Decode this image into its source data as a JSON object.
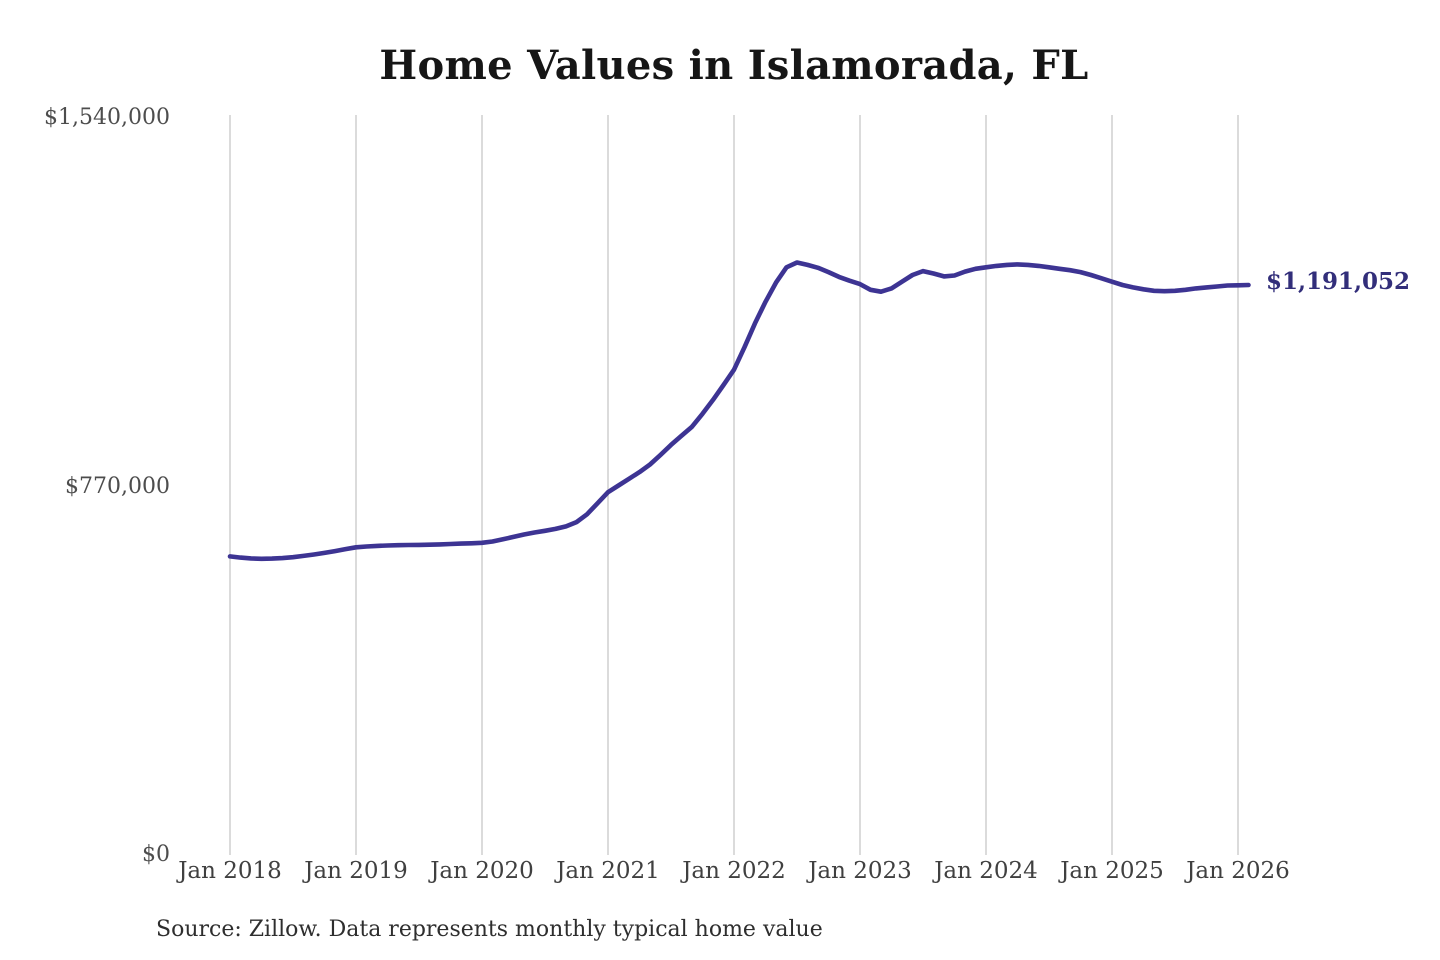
{
  "chart": {
    "title": "Home Values in Islamorada, FL",
    "end_label": "$1,191,052",
    "source_note": "Source: Zillow. Data represents monthly typical home value"
  },
  "chart_data": {
    "type": "line",
    "title": "Home Values in Islamorada, FL",
    "series_name": "Monthly typical home value",
    "unit": "USD",
    "x": [
      "2018-01",
      "2018-02",
      "2018-03",
      "2018-04",
      "2018-05",
      "2018-06",
      "2018-07",
      "2018-08",
      "2018-09",
      "2018-10",
      "2018-11",
      "2018-12",
      "2019-01",
      "2019-02",
      "2019-03",
      "2019-04",
      "2019-05",
      "2019-06",
      "2019-07",
      "2019-08",
      "2019-09",
      "2019-10",
      "2019-11",
      "2019-12",
      "2020-01",
      "2020-02",
      "2020-03",
      "2020-04",
      "2020-05",
      "2020-06",
      "2020-07",
      "2020-08",
      "2020-09",
      "2020-10",
      "2020-11",
      "2020-12",
      "2021-01",
      "2021-02",
      "2021-03",
      "2021-04",
      "2021-05",
      "2021-06",
      "2021-07",
      "2021-08",
      "2021-09",
      "2021-10",
      "2021-11",
      "2021-12",
      "2022-01",
      "2022-02",
      "2022-03",
      "2022-04",
      "2022-05",
      "2022-06",
      "2022-07",
      "2022-08",
      "2022-09",
      "2022-10",
      "2022-11",
      "2022-12",
      "2023-01",
      "2023-02",
      "2023-03",
      "2023-04",
      "2023-05",
      "2023-06",
      "2023-07",
      "2023-08",
      "2023-09",
      "2023-10",
      "2023-11",
      "2023-12",
      "2024-01",
      "2024-02",
      "2024-03",
      "2024-04",
      "2024-05",
      "2024-06",
      "2024-07",
      "2024-08",
      "2024-09",
      "2024-10",
      "2024-11",
      "2024-12",
      "2025-01",
      "2025-02",
      "2025-03",
      "2025-04",
      "2025-05",
      "2025-06",
      "2025-07",
      "2025-08",
      "2025-09",
      "2025-10",
      "2025-11",
      "2025-12",
      "2026-01",
      "2026-02"
    ],
    "values": [
      624000,
      621500,
      619800,
      619000,
      619300,
      620400,
      622300,
      624900,
      627900,
      631300,
      635100,
      639100,
      643000,
      644600,
      645800,
      646800,
      647300,
      647700,
      648000,
      648400,
      649000,
      649800,
      650600,
      651400,
      652300,
      655100,
      659600,
      664600,
      669600,
      673900,
      677500,
      681300,
      686600,
      695600,
      712000,
      735000,
      758000,
      772000,
      786000,
      800000,
      816000,
      836000,
      857000,
      876000,
      895000,
      922000,
      951000,
      982000,
      1014000,
      1061000,
      1111000,
      1156000,
      1196000,
      1228000,
      1238000,
      1233000,
      1227000,
      1218000,
      1208000,
      1200000,
      1193000,
      1181000,
      1177000,
      1184000,
      1198000,
      1212000,
      1220000,
      1215000,
      1209000,
      1211000,
      1219000,
      1225000,
      1228000,
      1231000,
      1233000,
      1234000,
      1233000,
      1231000,
      1228000,
      1225000,
      1222000,
      1218000,
      1212000,
      1205000,
      1198000,
      1191000,
      1186000,
      1182000,
      1179000,
      1178000,
      1179000,
      1181000,
      1184000,
      1186000,
      1188000,
      1190000,
      1190500,
      1191052
    ],
    "last_value": 1191052,
    "end_label": "$1,191,052",
    "ylim": [
      0,
      1540000
    ],
    "y_ticks": [
      {
        "value": 0,
        "label": "$0"
      },
      {
        "value": 770000,
        "label": "$770,000"
      },
      {
        "value": 1540000,
        "label": "$1,540,000"
      }
    ],
    "x_ticks": [
      {
        "month_index": 0,
        "label": "Jan 2018"
      },
      {
        "month_index": 12,
        "label": "Jan 2019"
      },
      {
        "month_index": 24,
        "label": "Jan 2020"
      },
      {
        "month_index": 36,
        "label": "Jan 2021"
      },
      {
        "month_index": 48,
        "label": "Jan 2022"
      },
      {
        "month_index": 60,
        "label": "Jan 2023"
      },
      {
        "month_index": 72,
        "label": "Jan 2024"
      },
      {
        "month_index": 84,
        "label": "Jan 2025"
      },
      {
        "month_index": 96,
        "label": "Jan 2026"
      }
    ],
    "grid": "vertical-only",
    "legend": "none",
    "line_color": "#3d3493",
    "grid_color": "#cfcfcf",
    "end_label_color": "#322e7a",
    "source_note": "Source: Zillow. Data represents monthly typical home value"
  }
}
